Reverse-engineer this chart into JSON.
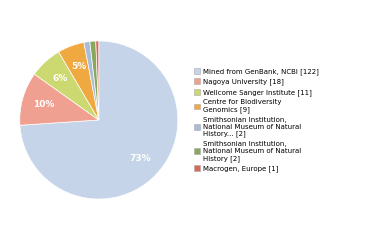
{
  "labels": [
    "Mined from GenBank, NCBI [122]",
    "Nagoya University [18]",
    "Wellcome Sanger Institute [11]",
    "Centre for Biodiversity\nGenomics [9]",
    "Smithsonian Institution,\nNational Museum of Natural\nHistory... [2]",
    "Smithsonian Institution,\nNational Museum of Natural\nHistory [2]",
    "Macrogen, Europe [1]"
  ],
  "values": [
    122,
    18,
    11,
    9,
    2,
    2,
    1
  ],
  "colors": [
    "#c5d4e8",
    "#f0a090",
    "#ccd870",
    "#f0a840",
    "#a8bcd8",
    "#88a860",
    "#d86858"
  ],
  "pct_show": [
    "73%",
    "10%",
    "6%",
    "5%",
    "",
    "",
    ""
  ],
  "startangle": 90,
  "background_color": "#ffffff"
}
